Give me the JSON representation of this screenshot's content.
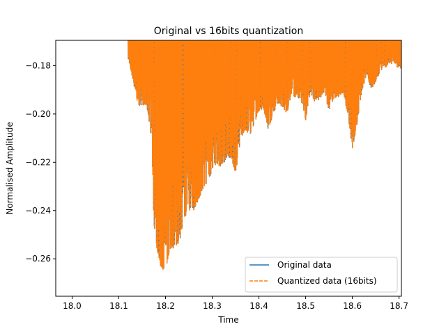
{
  "chart_data": {
    "type": "line",
    "title": "Original vs 16bits quantization",
    "xlabel": "Time",
    "ylabel": "Normalised Amplitude",
    "xlim": [
      17.965,
      18.705
    ],
    "ylim": [
      -0.2755,
      -0.1695
    ],
    "xticks": [
      18.0,
      18.1,
      18.2,
      18.3,
      18.4,
      18.5,
      18.6,
      18.7
    ],
    "xtick_labels": [
      "18.0",
      "18.1",
      "18.2",
      "18.3",
      "18.4",
      "18.5",
      "18.6",
      "18.7"
    ],
    "yticks": [
      -0.18,
      -0.2,
      -0.22,
      -0.24,
      -0.26
    ],
    "ytick_labels": [
      "−0.18",
      "−0.20",
      "−0.22",
      "−0.24",
      "−0.26"
    ],
    "grid": false,
    "legend_position": "lower right",
    "signal_start_x": 18.12,
    "envelope_minima": {
      "x": [
        18.12,
        18.13,
        18.14,
        18.15,
        18.16,
        18.17,
        18.175,
        18.18,
        18.19,
        18.2,
        18.21,
        18.22,
        18.23,
        18.24,
        18.25,
        18.26,
        18.27,
        18.28,
        18.29,
        18.3,
        18.31,
        18.32,
        18.33,
        18.34,
        18.35,
        18.36,
        18.37,
        18.38,
        18.39,
        18.4,
        18.41,
        18.42,
        18.43,
        18.44,
        18.45,
        18.46,
        18.47,
        18.48,
        18.49,
        18.5,
        18.51,
        18.52,
        18.53,
        18.54,
        18.55,
        18.56,
        18.57,
        18.58,
        18.59,
        18.6,
        18.61,
        18.62,
        18.63,
        18.64,
        18.65,
        18.66,
        18.67,
        18.68,
        18.69,
        18.7
      ],
      "y": [
        -0.178,
        -0.186,
        -0.196,
        -0.197,
        -0.197,
        -0.21,
        -0.245,
        -0.254,
        -0.264,
        -0.265,
        -0.257,
        -0.255,
        -0.253,
        -0.243,
        -0.24,
        -0.24,
        -0.236,
        -0.231,
        -0.229,
        -0.223,
        -0.221,
        -0.222,
        -0.219,
        -0.218,
        -0.225,
        -0.212,
        -0.207,
        -0.209,
        -0.204,
        -0.199,
        -0.198,
        -0.207,
        -0.2,
        -0.196,
        -0.197,
        -0.2,
        -0.191,
        -0.195,
        -0.194,
        -0.203,
        -0.192,
        -0.195,
        -0.194,
        -0.191,
        -0.199,
        -0.194,
        -0.193,
        -0.191,
        -0.2,
        -0.215,
        -0.204,
        -0.191,
        -0.184,
        -0.19,
        -0.187,
        -0.182,
        -0.181,
        -0.179,
        -0.18,
        -0.181
      ]
    },
    "series": [
      {
        "name": "Original data",
        "color": "#1f77b4",
        "style": "solid"
      },
      {
        "name": "Quantized data (16bits)",
        "color": "#ff7f0e",
        "style": "dashed"
      }
    ]
  }
}
